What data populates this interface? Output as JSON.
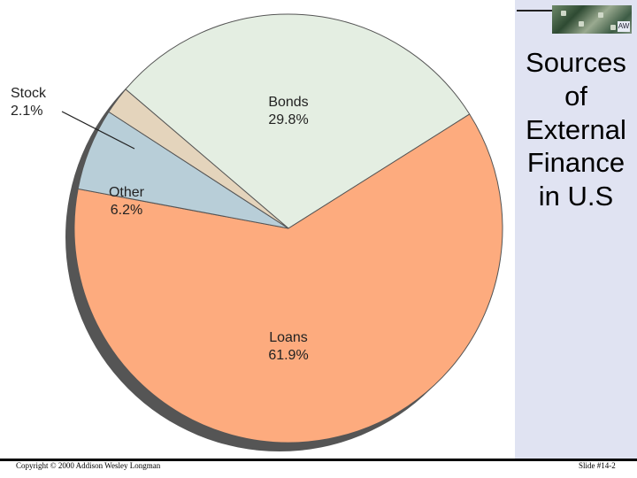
{
  "slide": {
    "title": "Sources of External Finance in U.S",
    "footer_left": "Copyright © 2000 Addison Wesley Longman",
    "footer_right": "Slide #14-2"
  },
  "chart_data": {
    "type": "pie",
    "categories": [
      "Bonds",
      "Loans",
      "Other",
      "Stock"
    ],
    "values": [
      29.8,
      61.9,
      6.2,
      2.1
    ],
    "value_labels": [
      "29.8%",
      "61.9%",
      "6.2%",
      "2.1%"
    ],
    "colors": [
      "#e4eee2",
      "#fdab7e",
      "#b8ced8",
      "#e4d4bc"
    ],
    "title": "",
    "legend": "none"
  }
}
